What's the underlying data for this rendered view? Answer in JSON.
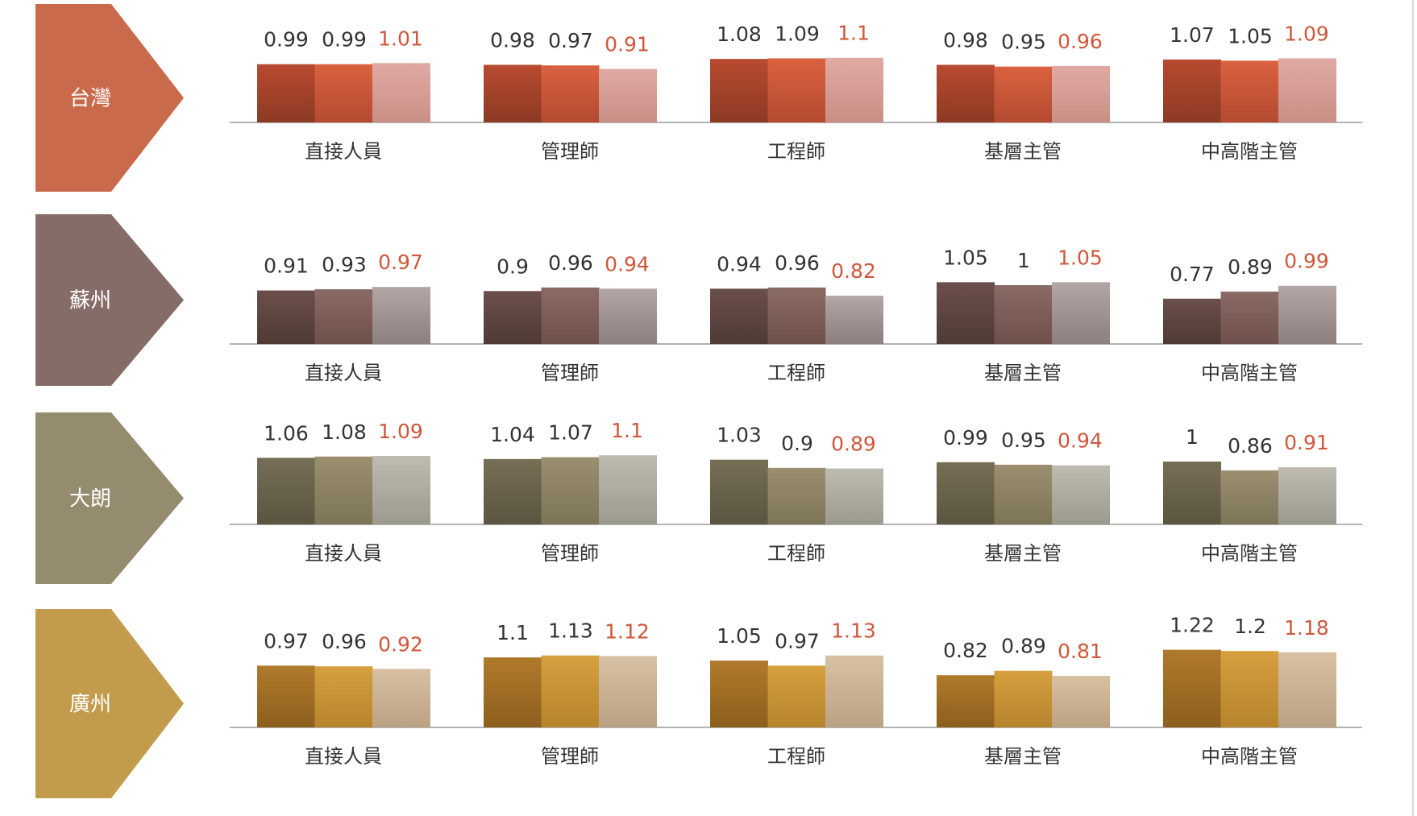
{
  "colors": {
    "text": "#333333",
    "highlight": "#d0573a",
    "baseline": "#9a9a9a"
  },
  "chart_data": {
    "type": "bar",
    "categories": [
      "直接人員",
      "管理師",
      "工程師",
      "基層主管",
      "中高階主管"
    ],
    "series_count": 3,
    "highlight_series_index": 2,
    "ylim": [
      0,
      1.25
    ],
    "panels": [
      {
        "region": "台灣",
        "arrow_color": "#c96a4c",
        "bar_colors": [
          [
            "#8c3a24",
            "#b84a30"
          ],
          [
            "#b44a30",
            "#d9623f"
          ],
          [
            "#c98f86",
            "#e0aaa4"
          ]
        ],
        "values": [
          [
            0.99,
            0.99,
            1.01
          ],
          [
            0.98,
            0.97,
            0.91
          ],
          [
            1.08,
            1.09,
            1.1
          ],
          [
            0.98,
            0.95,
            0.96
          ],
          [
            1.07,
            1.05,
            1.09
          ]
        ]
      },
      {
        "region": "蘇州",
        "arrow_color": "#866c67",
        "bar_colors": [
          [
            "#4f3a36",
            "#6b4f4a"
          ],
          [
            "#6e504b",
            "#8a6a64"
          ],
          [
            "#8c7f7d",
            "#b3a6a4"
          ]
        ],
        "values": [
          [
            0.91,
            0.93,
            0.97
          ],
          [
            0.9,
            0.96,
            0.94
          ],
          [
            0.94,
            0.96,
            0.82
          ],
          [
            1.05,
            1,
            1.05
          ],
          [
            0.77,
            0.89,
            0.99
          ]
        ]
      },
      {
        "region": "大朗",
        "arrow_color": "#958c6f",
        "bar_colors": [
          [
            "#5b5440",
            "#766e55"
          ],
          [
            "#7d7456",
            "#9a9070"
          ],
          [
            "#9c9a8e",
            "#bebbb0"
          ]
        ],
        "values": [
          [
            1.06,
            1.08,
            1.09
          ],
          [
            1.04,
            1.07,
            1.1
          ],
          [
            1.03,
            0.9,
            0.89
          ],
          [
            0.99,
            0.95,
            0.94
          ],
          [
            1,
            0.86,
            0.91
          ]
        ]
      },
      {
        "region": "廣州",
        "arrow_color": "#c29b4d",
        "bar_colors": [
          [
            "#8c5f1c",
            "#b07a2c"
          ],
          [
            "#b6842c",
            "#d6a03f"
          ],
          [
            "#bba283",
            "#d8c0a3"
          ]
        ],
        "values": [
          [
            0.97,
            0.96,
            0.92
          ],
          [
            1.1,
            1.13,
            1.12
          ],
          [
            1.05,
            0.97,
            1.13
          ],
          [
            0.82,
            0.89,
            0.81
          ],
          [
            1.22,
            1.2,
            1.18
          ]
        ]
      }
    ]
  }
}
